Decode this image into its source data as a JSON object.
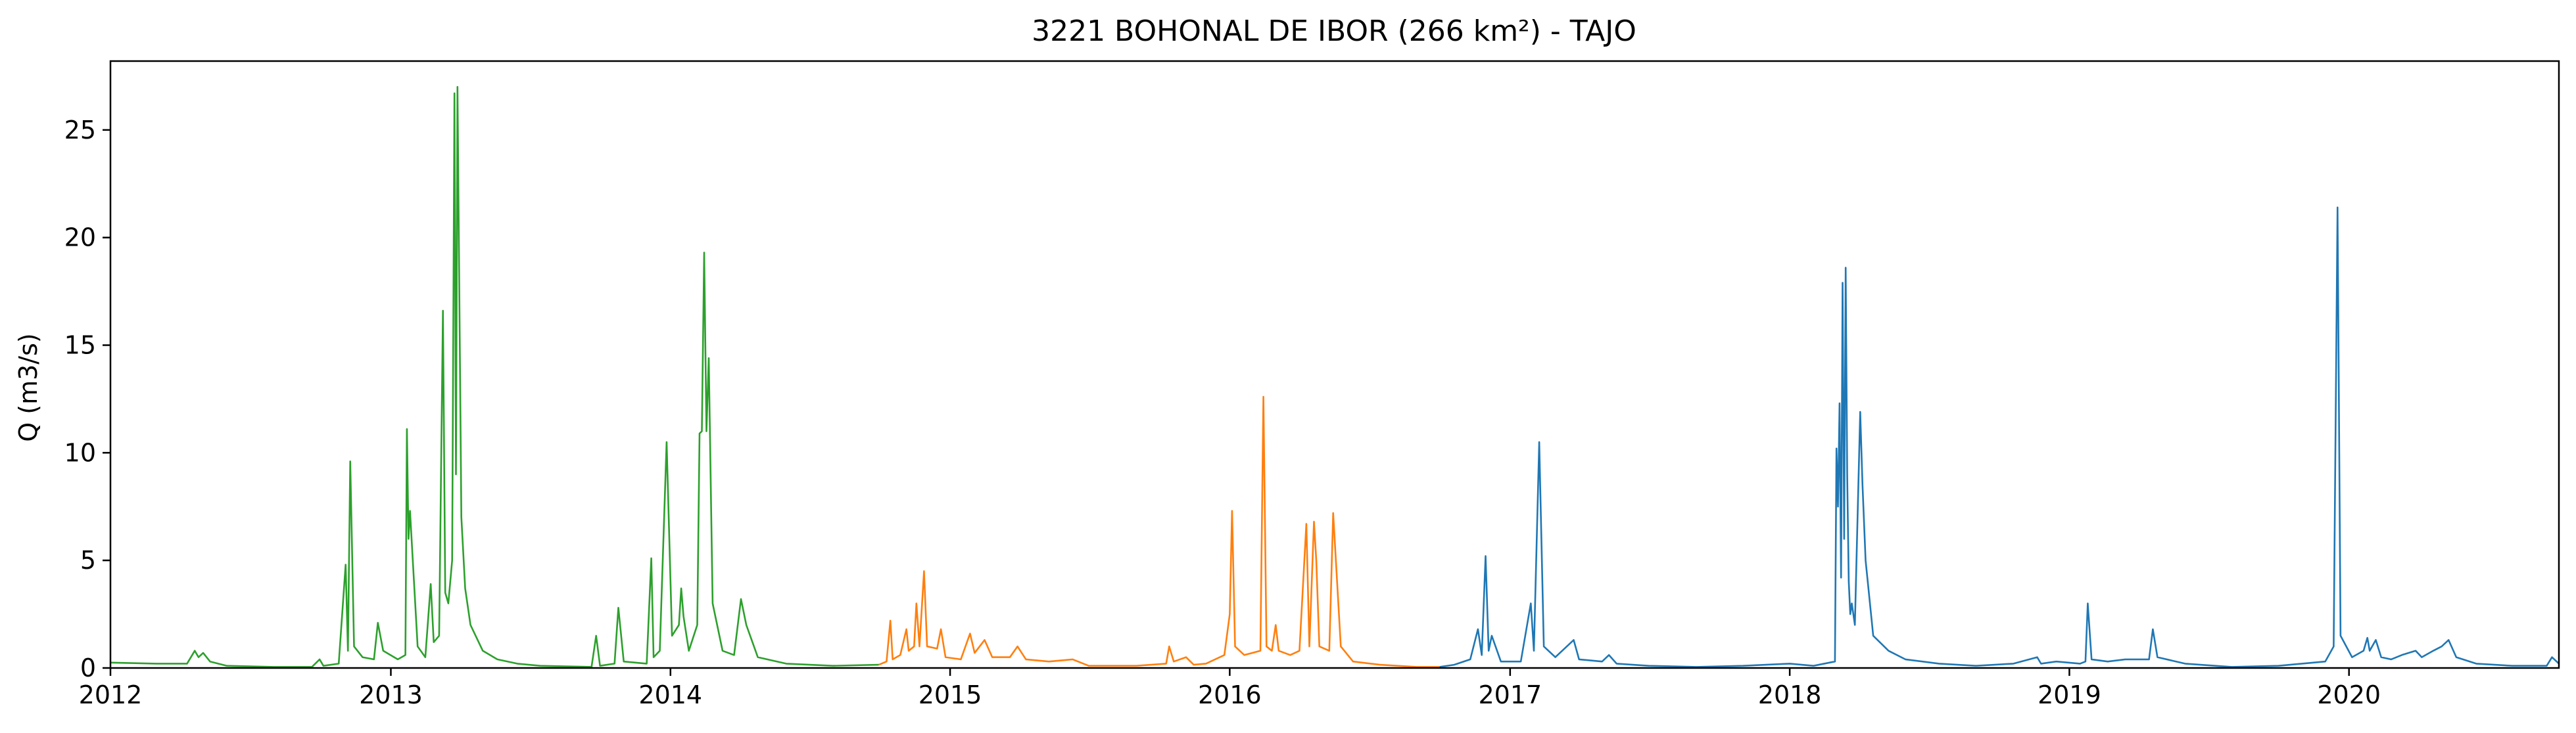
{
  "chart_data": {
    "type": "line",
    "title": "3221 BOHONAL DE IBOR (266 km²) - TAJO",
    "xlabel": "",
    "ylabel": "Q (m3/s)",
    "xlim": [
      "2012-01-01",
      "2020-10-01"
    ],
    "ylim": [
      0,
      28.2
    ],
    "x_ticks": [
      "2012",
      "2013",
      "2014",
      "2015",
      "2016",
      "2017",
      "2018",
      "2019",
      "2020"
    ],
    "y_ticks": [
      0,
      5,
      10,
      15,
      20,
      25
    ],
    "grid": false,
    "series": [
      {
        "color": "#2ca02c",
        "points": [
          [
            "2012-01-01",
            0.25
          ],
          [
            "2012-03-01",
            0.2
          ],
          [
            "2012-04-10",
            0.2
          ],
          [
            "2012-04-20",
            0.8
          ],
          [
            "2012-04-25",
            0.5
          ],
          [
            "2012-05-01",
            0.7
          ],
          [
            "2012-05-10",
            0.3
          ],
          [
            "2012-06-01",
            0.1
          ],
          [
            "2012-08-01",
            0.05
          ],
          [
            "2012-09-20",
            0.05
          ],
          [
            "2012-09-30",
            0.4
          ],
          [
            "2012-10-05",
            0.1
          ],
          [
            "2012-10-25",
            0.2
          ],
          [
            "2012-11-03",
            4.8
          ],
          [
            "2012-11-06",
            0.8
          ],
          [
            "2012-11-09",
            9.6
          ],
          [
            "2012-11-14",
            1.0
          ],
          [
            "2012-11-25",
            0.5
          ],
          [
            "2012-12-10",
            0.4
          ],
          [
            "2012-12-15",
            2.1
          ],
          [
            "2012-12-22",
            0.8
          ],
          [
            "2013-01-10",
            0.4
          ],
          [
            "2013-01-20",
            0.6
          ],
          [
            "2013-01-22",
            11.1
          ],
          [
            "2013-01-24",
            6.0
          ],
          [
            "2013-01-26",
            7.3
          ],
          [
            "2013-02-05",
            1.0
          ],
          [
            "2013-02-15",
            0.5
          ],
          [
            "2013-02-22",
            3.9
          ],
          [
            "2013-02-26",
            1.2
          ],
          [
            "2013-03-05",
            1.5
          ],
          [
            "2013-03-10",
            16.6
          ],
          [
            "2013-03-13",
            3.5
          ],
          [
            "2013-03-17",
            3.0
          ],
          [
            "2013-03-22",
            5.0
          ],
          [
            "2013-03-25",
            26.7
          ],
          [
            "2013-03-27",
            9.0
          ],
          [
            "2013-03-29",
            27.0
          ],
          [
            "2013-04-03",
            7.0
          ],
          [
            "2013-04-08",
            3.7
          ],
          [
            "2013-04-15",
            2.0
          ],
          [
            "2013-05-01",
            0.8
          ],
          [
            "2013-05-20",
            0.4
          ],
          [
            "2013-06-15",
            0.2
          ],
          [
            "2013-07-15",
            0.1
          ],
          [
            "2013-09-20",
            0.05
          ],
          [
            "2013-09-26",
            1.5
          ],
          [
            "2013-10-01",
            0.1
          ],
          [
            "2013-10-20",
            0.2
          ],
          [
            "2013-10-25",
            2.8
          ],
          [
            "2013-11-01",
            0.3
          ],
          [
            "2013-12-01",
            0.2
          ],
          [
            "2013-12-07",
            5.1
          ],
          [
            "2013-12-10",
            0.5
          ],
          [
            "2013-12-18",
            0.8
          ],
          [
            "2013-12-27",
            10.5
          ],
          [
            "2014-01-03",
            1.5
          ],
          [
            "2014-01-12",
            2.0
          ],
          [
            "2014-01-15",
            3.7
          ],
          [
            "2014-01-18",
            2.4
          ],
          [
            "2014-01-25",
            0.8
          ],
          [
            "2014-02-05",
            2.0
          ],
          [
            "2014-02-08",
            10.9
          ],
          [
            "2014-02-11",
            11.0
          ],
          [
            "2014-02-14",
            19.3
          ],
          [
            "2014-02-17",
            11.0
          ],
          [
            "2014-02-20",
            14.4
          ],
          [
            "2014-02-25",
            3.0
          ],
          [
            "2014-03-10",
            0.8
          ],
          [
            "2014-03-25",
            0.6
          ],
          [
            "2014-04-03",
            3.2
          ],
          [
            "2014-04-10",
            2.0
          ],
          [
            "2014-04-25",
            0.5
          ],
          [
            "2014-06-01",
            0.2
          ],
          [
            "2014-08-01",
            0.1
          ],
          [
            "2014-09-30",
            0.15
          ]
        ]
      },
      {
        "color": "#ff7f0e",
        "points": [
          [
            "2014-09-30",
            0.15
          ],
          [
            "2014-10-10",
            0.3
          ],
          [
            "2014-10-15",
            2.2
          ],
          [
            "2014-10-18",
            0.4
          ],
          [
            "2014-10-28",
            0.6
          ],
          [
            "2014-11-05",
            1.8
          ],
          [
            "2014-11-08",
            0.8
          ],
          [
            "2014-11-15",
            1.0
          ],
          [
            "2014-11-18",
            3.0
          ],
          [
            "2014-11-22",
            1.0
          ],
          [
            "2014-11-28",
            4.5
          ],
          [
            "2014-12-02",
            1.0
          ],
          [
            "2014-12-15",
            0.9
          ],
          [
            "2014-12-20",
            1.8
          ],
          [
            "2014-12-26",
            0.5
          ],
          [
            "2015-01-15",
            0.4
          ],
          [
            "2015-01-27",
            1.6
          ],
          [
            "2015-02-02",
            0.7
          ],
          [
            "2015-02-15",
            1.3
          ],
          [
            "2015-02-25",
            0.5
          ],
          [
            "2015-03-20",
            0.5
          ],
          [
            "2015-03-30",
            1.0
          ],
          [
            "2015-04-10",
            0.4
          ],
          [
            "2015-05-10",
            0.3
          ],
          [
            "2015-06-10",
            0.4
          ],
          [
            "2015-07-01",
            0.1
          ],
          [
            "2015-09-01",
            0.1
          ],
          [
            "2015-10-10",
            0.2
          ],
          [
            "2015-10-14",
            1.0
          ],
          [
            "2015-10-20",
            0.3
          ],
          [
            "2015-11-05",
            0.5
          ],
          [
            "2015-11-15",
            0.15
          ],
          [
            "2015-12-01",
            0.2
          ],
          [
            "2015-12-25",
            0.6
          ],
          [
            "2016-01-01",
            2.5
          ],
          [
            "2016-01-04",
            7.3
          ],
          [
            "2016-01-08",
            1.0
          ],
          [
            "2016-01-20",
            0.6
          ],
          [
            "2016-02-10",
            0.8
          ],
          [
            "2016-02-14",
            12.6
          ],
          [
            "2016-02-18",
            1.0
          ],
          [
            "2016-02-25",
            0.8
          ],
          [
            "2016-03-01",
            2.0
          ],
          [
            "2016-03-05",
            0.8
          ],
          [
            "2016-03-20",
            0.6
          ],
          [
            "2016-04-01",
            0.8
          ],
          [
            "2016-04-10",
            6.7
          ],
          [
            "2016-04-14",
            1.0
          ],
          [
            "2016-04-20",
            6.8
          ],
          [
            "2016-04-23",
            5.0
          ],
          [
            "2016-04-27",
            1.0
          ],
          [
            "2016-05-10",
            0.8
          ],
          [
            "2016-05-15",
            7.2
          ],
          [
            "2016-05-25",
            1.0
          ],
          [
            "2016-06-10",
            0.3
          ],
          [
            "2016-07-15",
            0.15
          ],
          [
            "2016-09-01",
            0.05
          ],
          [
            "2016-10-01",
            0.05
          ]
        ]
      },
      {
        "color": "#1f77b4",
        "points": [
          [
            "2016-10-01",
            0.05
          ],
          [
            "2016-10-20",
            0.15
          ],
          [
            "2016-11-10",
            0.4
          ],
          [
            "2016-11-20",
            1.8
          ],
          [
            "2016-11-25",
            0.6
          ],
          [
            "2016-11-30",
            5.2
          ],
          [
            "2016-12-04",
            0.8
          ],
          [
            "2016-12-08",
            1.5
          ],
          [
            "2016-12-20",
            0.3
          ],
          [
            "2017-01-15",
            0.3
          ],
          [
            "2017-01-28",
            3.0
          ],
          [
            "2017-02-01",
            0.8
          ],
          [
            "2017-02-08",
            10.5
          ],
          [
            "2017-02-14",
            1.0
          ],
          [
            "2017-03-01",
            0.5
          ],
          [
            "2017-03-25",
            1.3
          ],
          [
            "2017-04-01",
            0.4
          ],
          [
            "2017-05-01",
            0.3
          ],
          [
            "2017-05-10",
            0.6
          ],
          [
            "2017-05-20",
            0.2
          ],
          [
            "2017-07-01",
            0.1
          ],
          [
            "2017-09-01",
            0.05
          ],
          [
            "2017-11-01",
            0.1
          ],
          [
            "2018-01-01",
            0.2
          ],
          [
            "2018-02-01",
            0.1
          ],
          [
            "2018-03-01",
            0.3
          ],
          [
            "2018-03-03",
            10.2
          ],
          [
            "2018-03-05",
            7.5
          ],
          [
            "2018-03-07",
            12.3
          ],
          [
            "2018-03-09",
            4.2
          ],
          [
            "2018-03-11",
            17.9
          ],
          [
            "2018-03-13",
            6.0
          ],
          [
            "2018-03-15",
            18.6
          ],
          [
            "2018-03-17",
            9.0
          ],
          [
            "2018-03-19",
            4.0
          ],
          [
            "2018-03-21",
            2.5
          ],
          [
            "2018-03-23",
            3.0
          ],
          [
            "2018-03-27",
            2.0
          ],
          [
            "2018-04-03",
            11.9
          ],
          [
            "2018-04-06",
            8.5
          ],
          [
            "2018-04-10",
            5.0
          ],
          [
            "2018-04-20",
            1.5
          ],
          [
            "2018-05-10",
            0.8
          ],
          [
            "2018-06-01",
            0.4
          ],
          [
            "2018-07-15",
            0.2
          ],
          [
            "2018-09-01",
            0.1
          ],
          [
            "2018-10-20",
            0.2
          ],
          [
            "2018-11-20",
            0.5
          ],
          [
            "2018-11-25",
            0.2
          ],
          [
            "2018-12-15",
            0.3
          ],
          [
            "2019-01-15",
            0.2
          ],
          [
            "2019-01-22",
            0.3
          ],
          [
            "2019-01-25",
            3.0
          ],
          [
            "2019-01-30",
            0.4
          ],
          [
            "2019-02-20",
            0.3
          ],
          [
            "2019-03-15",
            0.4
          ],
          [
            "2019-04-15",
            0.4
          ],
          [
            "2019-04-20",
            1.8
          ],
          [
            "2019-04-26",
            0.5
          ],
          [
            "2019-06-01",
            0.2
          ],
          [
            "2019-08-01",
            0.05
          ],
          [
            "2019-10-01",
            0.1
          ],
          [
            "2019-12-01",
            0.3
          ],
          [
            "2019-12-12",
            1.0
          ],
          [
            "2019-12-17",
            21.4
          ],
          [
            "2019-12-21",
            1.5
          ],
          [
            "2020-01-05",
            0.5
          ],
          [
            "2020-01-20",
            0.8
          ],
          [
            "2020-01-25",
            1.4
          ],
          [
            "2020-01-28",
            0.8
          ],
          [
            "2020-02-05",
            1.3
          ],
          [
            "2020-02-12",
            0.5
          ],
          [
            "2020-02-25",
            0.4
          ],
          [
            "2020-03-10",
            0.6
          ],
          [
            "2020-03-28",
            0.8
          ],
          [
            "2020-04-05",
            0.5
          ],
          [
            "2020-04-20",
            0.8
          ],
          [
            "2020-05-01",
            1.0
          ],
          [
            "2020-05-10",
            1.3
          ],
          [
            "2020-05-20",
            0.5
          ],
          [
            "2020-06-15",
            0.2
          ],
          [
            "2020-08-01",
            0.1
          ],
          [
            "2020-09-15",
            0.1
          ],
          [
            "2020-09-22",
            0.5
          ],
          [
            "2020-10-01",
            0.2
          ]
        ]
      }
    ]
  }
}
